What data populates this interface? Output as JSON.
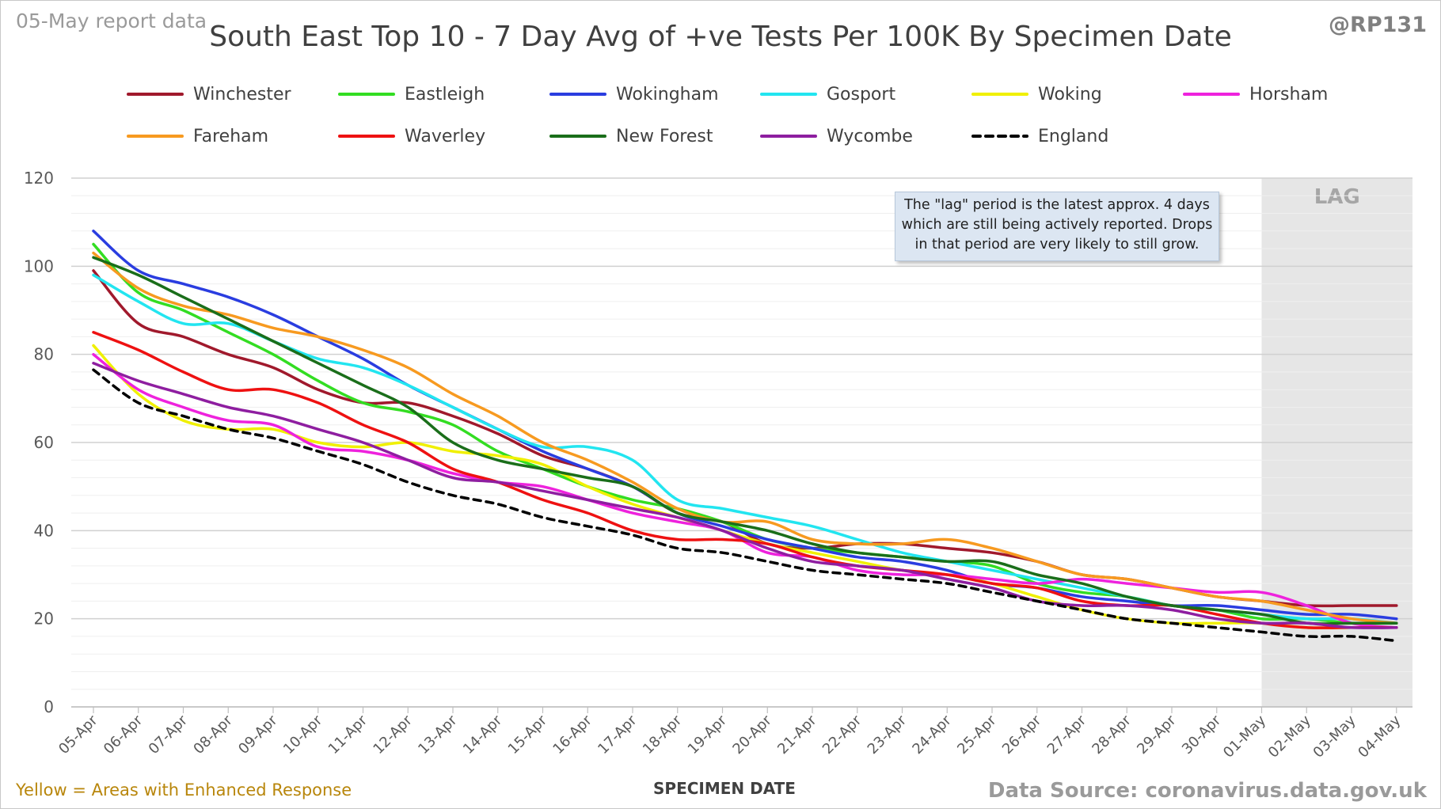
{
  "header": {
    "report_date": "05-May report data",
    "handle": "@RP131",
    "title": "South East Top 10 - 7 Day Avg of +ve Tests Per 100K By Specimen Date"
  },
  "footer": {
    "yellow_note": "Yellow = Areas with Enhanced Response",
    "source": "Data Source: coronavirus.data.gov.uk"
  },
  "annotation": {
    "lag_label": "LAG",
    "lag_note": "The \"lag\" period is the latest approx. 4 days which are still being actively reported. Drops in that period are very likely to still grow."
  },
  "chart_data": {
    "type": "line",
    "title": "South East Top 10 - 7 Day Avg of +ve Tests Per 100K By Specimen Date",
    "xlabel": "SPECIMEN DATE",
    "ylabel": "",
    "ylim": [
      0,
      120
    ],
    "yticks": [
      0,
      20,
      40,
      60,
      80,
      100,
      120
    ],
    "grid": true,
    "legend_position": "top",
    "lag_start": "01-May",
    "x": [
      "05-Apr",
      "06-Apr",
      "07-Apr",
      "08-Apr",
      "09-Apr",
      "10-Apr",
      "11-Apr",
      "12-Apr",
      "13-Apr",
      "14-Apr",
      "15-Apr",
      "16-Apr",
      "17-Apr",
      "18-Apr",
      "19-Apr",
      "20-Apr",
      "21-Apr",
      "22-Apr",
      "23-Apr",
      "24-Apr",
      "25-Apr",
      "26-Apr",
      "27-Apr",
      "28-Apr",
      "29-Apr",
      "30-Apr",
      "01-May",
      "02-May",
      "03-May",
      "04-May"
    ],
    "series": [
      {
        "name": "Winchester",
        "color": "#a0192c",
        "dash": false,
        "values": [
          99,
          87,
          84,
          80,
          77,
          72,
          69,
          69,
          66,
          62,
          57,
          54,
          50,
          44,
          42,
          37,
          36,
          37,
          37,
          36,
          35,
          33,
          30,
          29,
          27,
          25,
          24,
          23,
          23,
          23
        ]
      },
      {
        "name": "Eastleigh",
        "color": "#33dd22",
        "dash": false,
        "values": [
          105,
          94,
          90,
          85,
          80,
          74,
          69,
          67,
          64,
          58,
          54,
          50,
          47,
          45,
          42,
          38,
          36,
          35,
          34,
          33,
          32,
          28,
          26,
          25,
          23,
          22,
          20,
          20,
          19,
          19
        ]
      },
      {
        "name": "Wokingham",
        "color": "#2a3de0",
        "dash": false,
        "values": [
          108,
          99,
          96,
          93,
          89,
          84,
          79,
          73,
          68,
          63,
          58,
          54,
          50,
          44,
          41,
          38,
          36,
          34,
          33,
          31,
          28,
          27,
          25,
          24,
          23,
          23,
          22,
          21,
          21,
          20
        ]
      },
      {
        "name": "Gosport",
        "color": "#22e5f0",
        "dash": false,
        "values": [
          98,
          92,
          87,
          87,
          83,
          79,
          77,
          73,
          68,
          63,
          59,
          59,
          56,
          47,
          45,
          43,
          41,
          38,
          35,
          33,
          31,
          29,
          27,
          25,
          23,
          22,
          21,
          20,
          20,
          19
        ]
      },
      {
        "name": "Woking",
        "color": "#f0f000",
        "dash": false,
        "values": [
          82,
          71,
          65,
          63,
          63,
          60,
          59,
          60,
          58,
          57,
          55,
          50,
          46,
          43,
          40,
          37,
          35,
          33,
          31,
          30,
          28,
          25,
          22,
          20,
          19,
          19,
          19,
          18,
          18,
          18
        ]
      },
      {
        "name": "Horsham",
        "color": "#ee22dd",
        "dash": false,
        "values": [
          80,
          72,
          68,
          65,
          64,
          59,
          58,
          56,
          53,
          51,
          50,
          47,
          44,
          42,
          40,
          35,
          34,
          31,
          30,
          30,
          29,
          28,
          29,
          28,
          27,
          26,
          26,
          23,
          19,
          18
        ]
      },
      {
        "name": "Fareham",
        "color": "#f79a20",
        "dash": false,
        "values": [
          103,
          95,
          91,
          89,
          86,
          84,
          81,
          77,
          71,
          66,
          60,
          56,
          51,
          45,
          42,
          42,
          38,
          37,
          37,
          38,
          36,
          33,
          30,
          29,
          27,
          25,
          24,
          22,
          20,
          19
        ]
      },
      {
        "name": "Waverley",
        "color": "#ee1111",
        "dash": false,
        "values": [
          85,
          81,
          76,
          72,
          72,
          69,
          64,
          60,
          54,
          51,
          47,
          44,
          40,
          38,
          38,
          37,
          34,
          32,
          31,
          30,
          28,
          27,
          24,
          23,
          23,
          21,
          19,
          18,
          18,
          18
        ]
      },
      {
        "name": "New Forest",
        "color": "#1a6e1a",
        "dash": false,
        "values": [
          102,
          98,
          93,
          88,
          83,
          78,
          73,
          68,
          60,
          56,
          54,
          52,
          50,
          44,
          42,
          40,
          37,
          35,
          34,
          33,
          33,
          30,
          28,
          25,
          23,
          22,
          21,
          19,
          19,
          19
        ]
      },
      {
        "name": "Wycombe",
        "color": "#8e1ea0",
        "dash": false,
        "values": [
          78,
          74,
          71,
          68,
          66,
          63,
          60,
          56,
          52,
          51,
          49,
          47,
          45,
          43,
          40,
          36,
          33,
          32,
          31,
          29,
          27,
          24,
          23,
          23,
          22,
          20,
          19,
          19,
          18,
          18
        ]
      },
      {
        "name": "England",
        "color": "#000000",
        "dash": true,
        "values": [
          76.5,
          69,
          66,
          63,
          61,
          58,
          55,
          51,
          48,
          46,
          43,
          41,
          39,
          36,
          35,
          33,
          31,
          30,
          29,
          28,
          26,
          24,
          22,
          20,
          19,
          18,
          17,
          16,
          16,
          15
        ]
      }
    ]
  }
}
